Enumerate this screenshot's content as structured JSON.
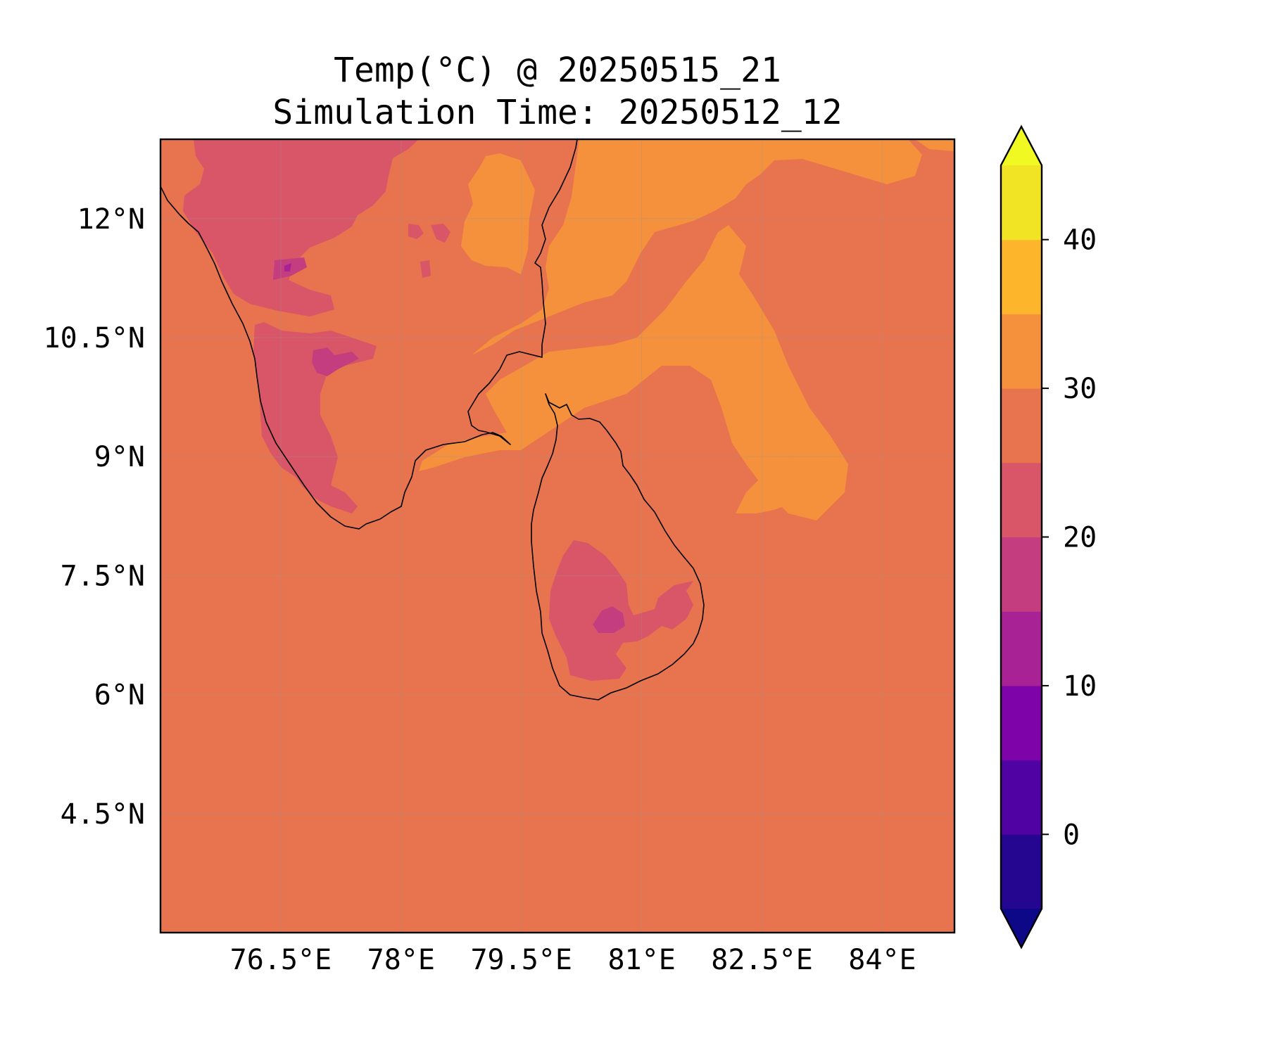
{
  "title": {
    "line1": "Temp(°C) @ 20250515_21",
    "line2": "Simulation Time: 20250512_12"
  },
  "map": {
    "lon_range": [
      75.0,
      84.9
    ],
    "lat_range": [
      3.0,
      13.0
    ],
    "lon_ticks": [
      {
        "value": 76.5,
        "label": "76.5°E"
      },
      {
        "value": 78.0,
        "label": "78°E"
      },
      {
        "value": 79.5,
        "label": "79.5°E"
      },
      {
        "value": 81.0,
        "label": "81°E"
      },
      {
        "value": 82.5,
        "label": "82.5°E"
      },
      {
        "value": 84.0,
        "label": "84°E"
      }
    ],
    "lat_ticks": [
      {
        "value": 12.0,
        "label": "12°N"
      },
      {
        "value": 10.5,
        "label": "10.5°N"
      },
      {
        "value": 9.0,
        "label": "9°N"
      },
      {
        "value": 7.5,
        "label": "7.5°N"
      },
      {
        "value": 6.0,
        "label": "6°N"
      },
      {
        "value": 4.5,
        "label": "4.5°N"
      }
    ],
    "gridlines": true
  },
  "colorbar": {
    "levels": [
      -5,
      0,
      5,
      10,
      15,
      20,
      25,
      30,
      35,
      40,
      45
    ],
    "colors": [
      "#240691",
      "#5002a2",
      "#7e03a8",
      "#a82296",
      "#c43e7f",
      "#d95568",
      "#e8734f",
      "#f5913c",
      "#fdb52c",
      "#f1e424"
    ],
    "under_color": "#0d0887",
    "over_color": "#f0f921",
    "extend": "both",
    "ticks": [
      {
        "value": 0,
        "label": "0"
      },
      {
        "value": 10,
        "label": "10"
      },
      {
        "value": 20,
        "label": "20"
      },
      {
        "value": 30,
        "label": "30"
      },
      {
        "value": 40,
        "label": "40"
      }
    ]
  },
  "field_colors": {
    "background": "#e8734f",
    "warm": "#f5913c",
    "cool": "#d95568",
    "cooler": "#c43e7f",
    "coldest": "#a82296"
  }
}
